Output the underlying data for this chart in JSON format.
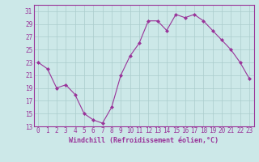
{
  "x": [
    0,
    1,
    2,
    3,
    4,
    5,
    6,
    7,
    8,
    9,
    10,
    11,
    12,
    13,
    14,
    15,
    16,
    17,
    18,
    19,
    20,
    21,
    22,
    23
  ],
  "y": [
    23,
    22,
    19,
    19.5,
    18,
    15,
    14,
    13.5,
    16,
    21,
    24,
    26,
    29.5,
    29.5,
    28,
    30.5,
    30,
    30.5,
    29.5,
    28,
    26.5,
    25,
    23,
    20.5
  ],
  "line_color": "#993399",
  "marker": "D",
  "marker_size": 2,
  "bg_color": "#cce8e8",
  "grid_color": "#aacccc",
  "tick_color": "#993399",
  "label_color": "#993399",
  "xlabel": "Windchill (Refroidissement éolien,°C)",
  "xlim": [
    -0.5,
    23.5
  ],
  "ylim": [
    13,
    32
  ],
  "yticks": [
    13,
    15,
    17,
    19,
    21,
    23,
    25,
    27,
    29,
    31
  ],
  "xticks": [
    0,
    1,
    2,
    3,
    4,
    5,
    6,
    7,
    8,
    9,
    10,
    11,
    12,
    13,
    14,
    15,
    16,
    17,
    18,
    19,
    20,
    21,
    22,
    23
  ],
  "tick_fontsize": 5.5,
  "xlabel_fontsize": 6.0
}
